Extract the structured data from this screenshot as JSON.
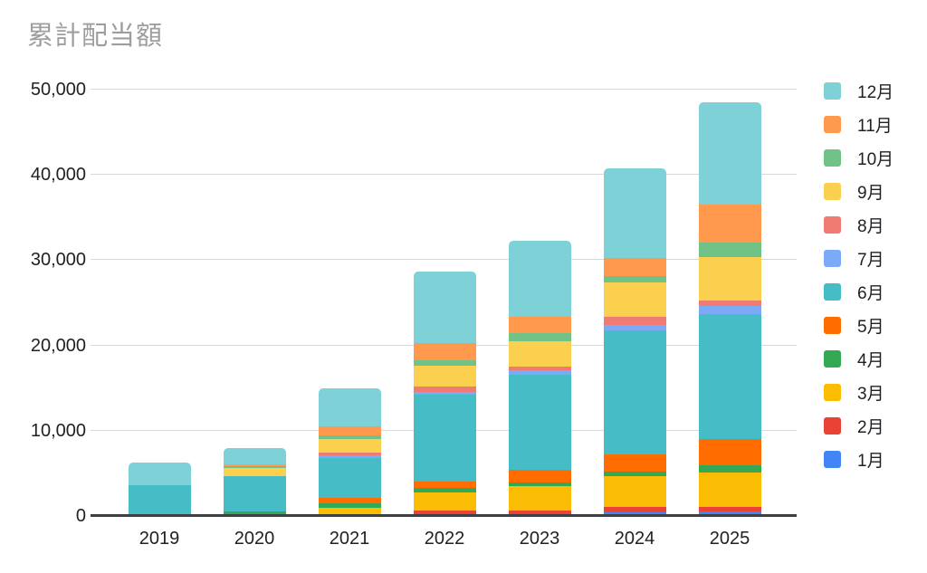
{
  "title": "累計配当額",
  "styles": {
    "background": "#ffffff",
    "title_color": "#9e9e9e",
    "axis_label_color": "#202124",
    "gridline_color": "#d9d9d9",
    "axis_line_color": "#3c4043"
  },
  "chart_data": {
    "type": "bar",
    "stacked": true,
    "title": "累計配当額",
    "xlabel": "",
    "ylabel": "",
    "grid": true,
    "categories": [
      "2019",
      "2020",
      "2021",
      "2022",
      "2023",
      "2024",
      "2025"
    ],
    "series": [
      {
        "name": "1月",
        "color": "#4285F4",
        "values": [
          0,
          0,
          0,
          0,
          0,
          450,
          500
        ]
      },
      {
        "name": "2月",
        "color": "#EA4335",
        "values": [
          0,
          0,
          0,
          600,
          650,
          650,
          600
        ]
      },
      {
        "name": "3月",
        "color": "#FBBC04",
        "values": [
          0,
          250,
          1000,
          2200,
          2850,
          3550,
          4050
        ]
      },
      {
        "name": "4月",
        "color": "#34A853",
        "values": [
          0,
          250,
          500,
          450,
          450,
          600,
          800
        ]
      },
      {
        "name": "5月",
        "color": "#FF6D00",
        "values": [
          0,
          0,
          650,
          800,
          1500,
          2000,
          3050
        ]
      },
      {
        "name": "6月",
        "color": "#46BDC6",
        "values": [
          3650,
          4150,
          4700,
          10200,
          11150,
          14500,
          14650
        ]
      },
      {
        "name": "7月",
        "color": "#7BAAF7",
        "values": [
          0,
          0,
          250,
          350,
          450,
          700,
          950
        ]
      },
      {
        "name": "8月",
        "color": "#F07B72",
        "values": [
          0,
          0,
          350,
          550,
          500,
          900,
          700
        ]
      },
      {
        "name": "9月",
        "color": "#FCD04F",
        "values": [
          0,
          950,
          1600,
          2500,
          2950,
          4100,
          5100
        ]
      },
      {
        "name": "10月",
        "color": "#71C287",
        "values": [
          0,
          250,
          450,
          600,
          950,
          700,
          1700
        ]
      },
      {
        "name": "11月",
        "color": "#FF994D",
        "values": [
          0,
          200,
          1050,
          2000,
          1900,
          2100,
          4450
        ]
      },
      {
        "name": "12月",
        "color": "#7ED1D7",
        "values": [
          2650,
          1950,
          4450,
          8400,
          8950,
          10500,
          11950
        ]
      }
    ],
    "totals": [
      6300,
      8000,
      15000,
      28650,
      32300,
      40750,
      48500
    ],
    "y_axis": {
      "min": 0,
      "max": 50000,
      "ticks": [
        {
          "value": 0,
          "label": "0"
        },
        {
          "value": 10000,
          "label": "10,000"
        },
        {
          "value": 20000,
          "label": "20,000"
        },
        {
          "value": 30000,
          "label": "30,000"
        },
        {
          "value": 40000,
          "label": "40,000"
        },
        {
          "value": 50000,
          "label": "50,000"
        }
      ]
    },
    "legend": {
      "position": "right",
      "order": [
        "12月",
        "11月",
        "10月",
        "9月",
        "8月",
        "7月",
        "6月",
        "5月",
        "4月",
        "3月",
        "2月",
        "1月"
      ]
    }
  }
}
